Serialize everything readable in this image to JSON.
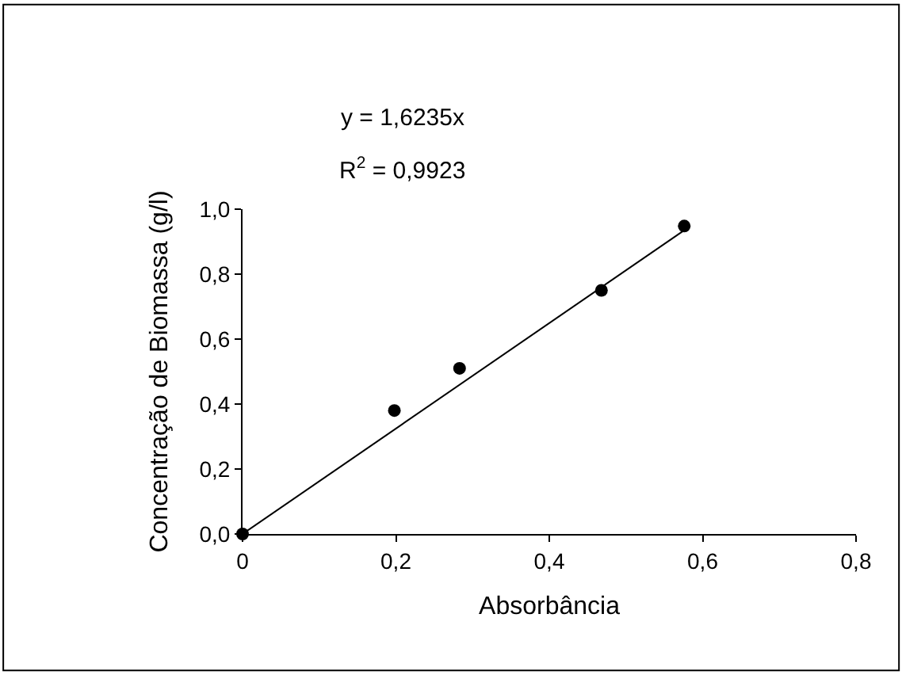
{
  "chart_data": {
    "type": "scatter",
    "xlabel": "Absorbância",
    "ylabel": "Concentração de Biomassa (g/l)",
    "annotations": [
      "y = 1,6235x",
      "R$^{2}$ = 0,9923"
    ],
    "xlim": [
      0,
      0.8
    ],
    "xticks": [
      0,
      {
        "value": 0.2,
        "label": "0,2"
      },
      {
        "value": 0.4,
        "label": "0,4"
      },
      {
        "value": 0.6,
        "label": "0,6"
      },
      {
        "value": 0.8,
        "label": "0,8"
      }
    ],
    "ylim": [
      0,
      1.0
    ],
    "yticks": [
      {
        "value": 0,
        "label": "0,0"
      },
      {
        "value": 0.2,
        "label": "0,2"
      },
      {
        "value": 0.4,
        "label": "0,4"
      },
      {
        "value": 0.6,
        "label": "0,6"
      },
      {
        "value": 0.8,
        "label": "0,8"
      },
      {
        "value": 1.0,
        "label": "1,0"
      }
    ],
    "marker": "circle",
    "series": [
      {
        "color": "#000000",
        "x": [
          0,
          0.198,
          0.283,
          0.468,
          0.576
        ],
        "values": [
          0,
          0.38,
          0.51,
          0.75,
          0.948
        ]
      },
      {
        "type": "line",
        "color": "#000000",
        "line_style": "solid",
        "marker": "none",
        "x": [
          0,
          0.576
        ],
        "values": [
          0,
          0.935
        ]
      }
    ]
  }
}
